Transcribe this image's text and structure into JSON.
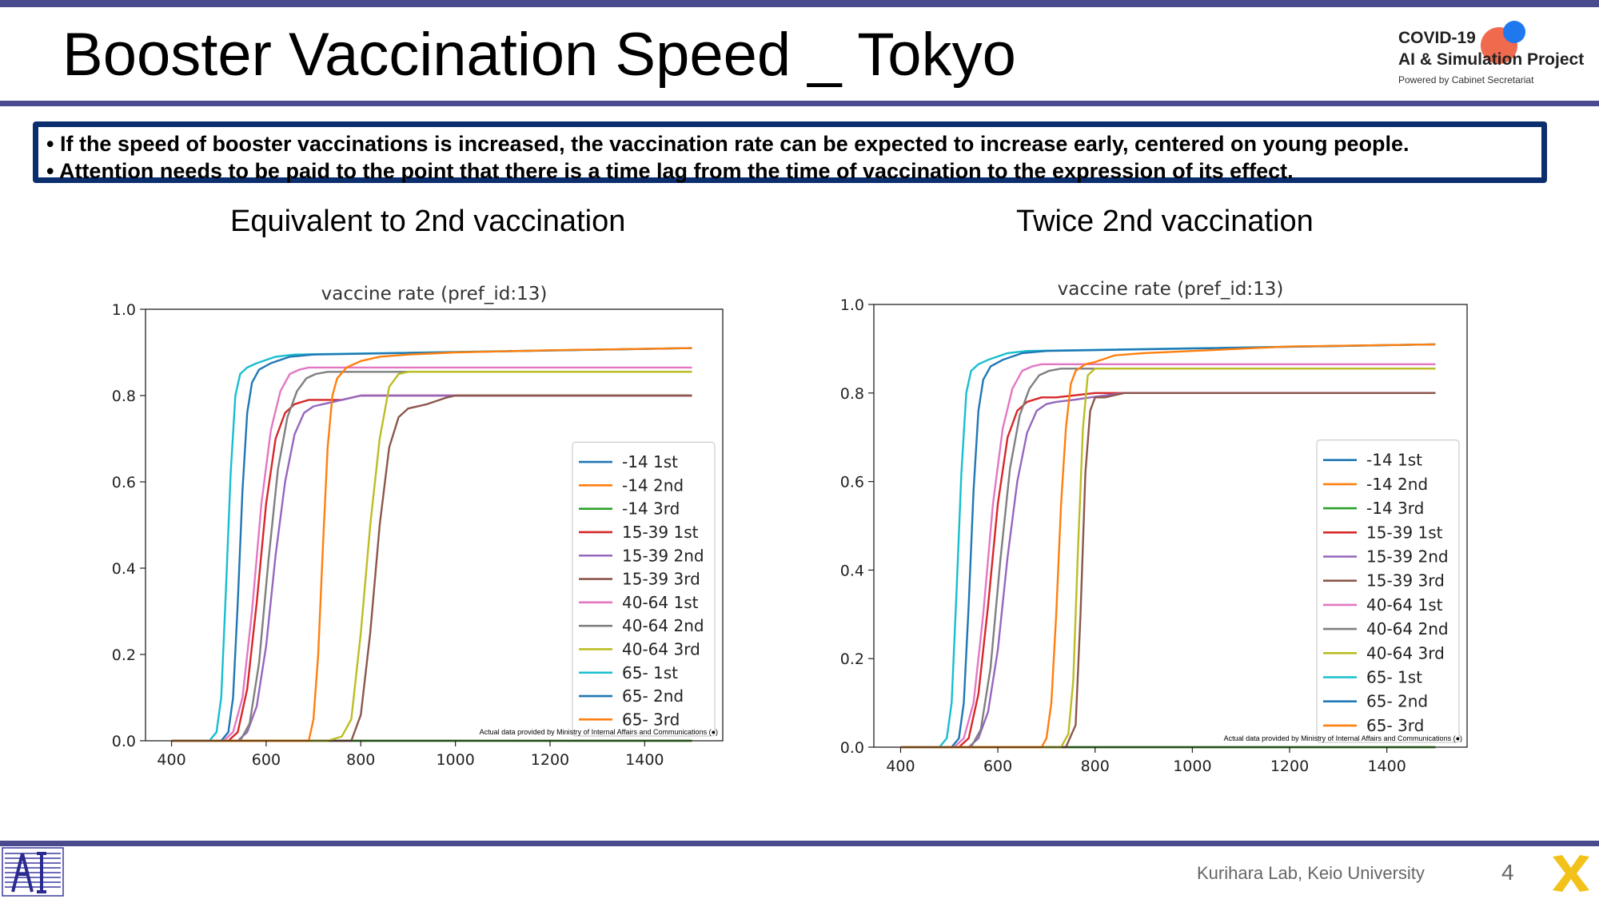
{
  "header": {
    "title": "Booster Vaccination Speed _ Tokyo",
    "logo": {
      "line1": "COVID-19",
      "line2": "AI & Simulation Project",
      "line3": "Powered by Cabinet Secretariat",
      "accent_red": "#f06a4e",
      "accent_blue": "#1f78ee"
    }
  },
  "callout": {
    "bullets": [
      "• If the speed of booster vaccinations is increased, the vaccination rate can be expected to increase early, centered on young people.",
      "• Attention needs to be paid to the point that there is a time lag from the time of vaccination to the expression of its effect."
    ],
    "border_color": "#0b2e6e"
  },
  "panels": {
    "left": {
      "heading": "Equivalent to 2nd vaccination"
    },
    "right": {
      "heading": "Twice 2nd vaccination"
    }
  },
  "footer": {
    "credit": "Kurihara Lab, Keio University",
    "page_number": "4",
    "rule_color": "#4a4a8e"
  },
  "chart_data": [
    {
      "type": "line",
      "title": "vaccine rate (pref_id:13)",
      "xlim": [
        345,
        1565
      ],
      "ylim": [
        0,
        1.0
      ],
      "xticks": [
        400,
        600,
        800,
        1000,
        1200,
        1400
      ],
      "yticks": [
        0.0,
        0.2,
        0.4,
        0.6,
        0.8,
        1.0
      ],
      "grid": false,
      "legend_position": "lower-right",
      "annotation": "Actual data provided by Ministry of Internal Affairs and Communications (●)",
      "series": [
        {
          "name": "-14  1st",
          "color": "#1f77b4",
          "x": [
            400,
            1500
          ],
          "y": [
            0.0,
            0.0
          ]
        },
        {
          "name": "-14  2nd",
          "color": "#ff7f0e",
          "x": [
            400,
            1500
          ],
          "y": [
            0.0,
            0.0
          ]
        },
        {
          "name": "-14  3rd",
          "color": "#2ca02c",
          "x": [
            400,
            1500
          ],
          "y": [
            0.0,
            0.0
          ]
        },
        {
          "name": "15-39  1st",
          "color": "#d62728",
          "x": [
            400,
            520,
            540,
            560,
            580,
            600,
            620,
            640,
            660,
            690,
            720,
            760,
            800,
            900,
            1000,
            1500
          ],
          "y": [
            0,
            0,
            0.02,
            0.12,
            0.32,
            0.55,
            0.7,
            0.76,
            0.78,
            0.79,
            0.79,
            0.79,
            0.8,
            0.8,
            0.8,
            0.8
          ]
        },
        {
          "name": "15-39  2nd",
          "color": "#9467bd",
          "x": [
            400,
            540,
            560,
            580,
            600,
            620,
            640,
            660,
            680,
            700,
            720,
            760,
            800,
            900,
            1000,
            1500
          ],
          "y": [
            0,
            0,
            0.02,
            0.08,
            0.22,
            0.43,
            0.6,
            0.71,
            0.76,
            0.775,
            0.78,
            0.79,
            0.8,
            0.8,
            0.8,
            0.8
          ]
        },
        {
          "name": "15-39  3rd",
          "color": "#8c564b",
          "x": [
            400,
            780,
            800,
            820,
            840,
            860,
            880,
            900,
            940,
            980,
            1000,
            1500
          ],
          "y": [
            0,
            0,
            0.06,
            0.25,
            0.5,
            0.68,
            0.75,
            0.77,
            0.78,
            0.795,
            0.8,
            0.8
          ]
        },
        {
          "name": "40-64  1st",
          "color": "#e377c2",
          "x": [
            400,
            510,
            530,
            550,
            570,
            590,
            610,
            630,
            650,
            670,
            690,
            720,
            1500
          ],
          "y": [
            0,
            0,
            0.02,
            0.1,
            0.3,
            0.55,
            0.72,
            0.81,
            0.85,
            0.86,
            0.865,
            0.865,
            0.865
          ]
        },
        {
          "name": "40-64  2nd",
          "color": "#7f7f7f",
          "x": [
            400,
            545,
            565,
            585,
            605,
            625,
            645,
            665,
            685,
            705,
            730,
            1500
          ],
          "y": [
            0,
            0,
            0.04,
            0.18,
            0.42,
            0.63,
            0.75,
            0.81,
            0.84,
            0.85,
            0.855,
            0.855
          ]
        },
        {
          "name": "40-64  3rd",
          "color": "#bcbd22",
          "x": [
            400,
            730,
            760,
            780,
            800,
            820,
            840,
            860,
            880,
            900,
            920,
            1500
          ],
          "y": [
            0,
            0,
            0.01,
            0.05,
            0.25,
            0.5,
            0.7,
            0.82,
            0.85,
            0.855,
            0.855,
            0.855
          ]
        },
        {
          "name": "65-  1st",
          "color": "#17becf",
          "x": [
            400,
            480,
            495,
            505,
            515,
            525,
            535,
            545,
            560,
            580,
            620,
            660,
            1500
          ],
          "y": [
            0,
            0,
            0.02,
            0.1,
            0.35,
            0.62,
            0.8,
            0.85,
            0.865,
            0.875,
            0.89,
            0.895,
            0.91
          ]
        },
        {
          "name": "65-  2nd",
          "color": "#1f77b4",
          "x": [
            400,
            505,
            520,
            530,
            540,
            550,
            560,
            570,
            585,
            610,
            650,
            700,
            1500
          ],
          "y": [
            0,
            0,
            0.02,
            0.1,
            0.32,
            0.58,
            0.76,
            0.83,
            0.86,
            0.875,
            0.89,
            0.895,
            0.91
          ]
        },
        {
          "name": "65-  3rd",
          "color": "#ff7f0e",
          "x": [
            400,
            690,
            700,
            710,
            720,
            730,
            740,
            750,
            770,
            800,
            840,
            900,
            1000,
            1200,
            1500
          ],
          "y": [
            0,
            0,
            0.05,
            0.2,
            0.45,
            0.68,
            0.8,
            0.84,
            0.865,
            0.88,
            0.89,
            0.895,
            0.9,
            0.905,
            0.91
          ]
        }
      ]
    },
    {
      "type": "line",
      "title": "vaccine rate (pref_id:13)",
      "xlim": [
        345,
        1565
      ],
      "ylim": [
        0,
        1.0
      ],
      "xticks": [
        400,
        600,
        800,
        1000,
        1200,
        1400
      ],
      "yticks": [
        0.0,
        0.2,
        0.4,
        0.6,
        0.8,
        1.0
      ],
      "grid": false,
      "legend_position": "lower-right",
      "annotation": "Actual data provided by Ministry of Internal Affairs and Communications (●)",
      "series": [
        {
          "name": "-14  1st",
          "color": "#1f77b4",
          "x": [
            400,
            1500
          ],
          "y": [
            0.0,
            0.0
          ]
        },
        {
          "name": "-14  2nd",
          "color": "#ff7f0e",
          "x": [
            400,
            1500
          ],
          "y": [
            0.0,
            0.0
          ]
        },
        {
          "name": "-14  3rd",
          "color": "#2ca02c",
          "x": [
            400,
            1500
          ],
          "y": [
            0.0,
            0.0
          ]
        },
        {
          "name": "15-39  1st",
          "color": "#d62728",
          "x": [
            400,
            520,
            540,
            560,
            580,
            600,
            620,
            640,
            660,
            690,
            720,
            760,
            800,
            860,
            1000,
            1500
          ],
          "y": [
            0,
            0,
            0.02,
            0.12,
            0.32,
            0.55,
            0.7,
            0.76,
            0.78,
            0.79,
            0.79,
            0.795,
            0.8,
            0.8,
            0.8,
            0.8
          ]
        },
        {
          "name": "15-39  2nd",
          "color": "#9467bd",
          "x": [
            400,
            540,
            560,
            580,
            600,
            620,
            640,
            660,
            680,
            700,
            720,
            760,
            790,
            860,
            1000,
            1500
          ],
          "y": [
            0,
            0,
            0.02,
            0.08,
            0.22,
            0.43,
            0.6,
            0.71,
            0.76,
            0.775,
            0.78,
            0.785,
            0.79,
            0.8,
            0.8,
            0.8
          ]
        },
        {
          "name": "15-39  3rd",
          "color": "#8c564b",
          "x": [
            400,
            740,
            760,
            770,
            780,
            790,
            800,
            820,
            860,
            1000,
            1500
          ],
          "y": [
            0,
            0,
            0.05,
            0.3,
            0.62,
            0.76,
            0.79,
            0.79,
            0.8,
            0.8,
            0.8
          ]
        },
        {
          "name": "40-64  1st",
          "color": "#e377c2",
          "x": [
            400,
            510,
            530,
            550,
            570,
            590,
            610,
            630,
            650,
            670,
            690,
            720,
            1500
          ],
          "y": [
            0,
            0,
            0.02,
            0.1,
            0.3,
            0.55,
            0.72,
            0.81,
            0.85,
            0.86,
            0.865,
            0.865,
            0.865
          ]
        },
        {
          "name": "40-64  2nd",
          "color": "#7f7f7f",
          "x": [
            400,
            545,
            565,
            585,
            605,
            625,
            645,
            665,
            685,
            705,
            730,
            1500
          ],
          "y": [
            0,
            0,
            0.04,
            0.18,
            0.42,
            0.63,
            0.75,
            0.81,
            0.84,
            0.85,
            0.855,
            0.855
          ]
        },
        {
          "name": "40-64  3rd",
          "color": "#bcbd22",
          "x": [
            400,
            730,
            745,
            755,
            765,
            775,
            785,
            800,
            1500
          ],
          "y": [
            0,
            0,
            0.03,
            0.15,
            0.45,
            0.72,
            0.84,
            0.855,
            0.855
          ]
        },
        {
          "name": "65-  1st",
          "color": "#17becf",
          "x": [
            400,
            480,
            495,
            505,
            515,
            525,
            535,
            545,
            560,
            580,
            620,
            660,
            1500
          ],
          "y": [
            0,
            0,
            0.02,
            0.1,
            0.35,
            0.62,
            0.8,
            0.85,
            0.865,
            0.875,
            0.89,
            0.895,
            0.91
          ]
        },
        {
          "name": "65-  2nd",
          "color": "#1f77b4",
          "x": [
            400,
            505,
            520,
            530,
            540,
            550,
            560,
            570,
            585,
            610,
            650,
            700,
            1500
          ],
          "y": [
            0,
            0,
            0.02,
            0.1,
            0.32,
            0.58,
            0.76,
            0.83,
            0.86,
            0.875,
            0.89,
            0.895,
            0.91
          ]
        },
        {
          "name": "65-  3rd",
          "color": "#ff7f0e",
          "x": [
            400,
            690,
            700,
            710,
            720,
            730,
            740,
            750,
            760,
            780,
            800,
            840,
            900,
            1000,
            1200,
            1500
          ],
          "y": [
            0,
            0,
            0.02,
            0.1,
            0.3,
            0.55,
            0.72,
            0.82,
            0.85,
            0.865,
            0.87,
            0.885,
            0.89,
            0.895,
            0.905,
            0.91
          ]
        }
      ]
    }
  ]
}
